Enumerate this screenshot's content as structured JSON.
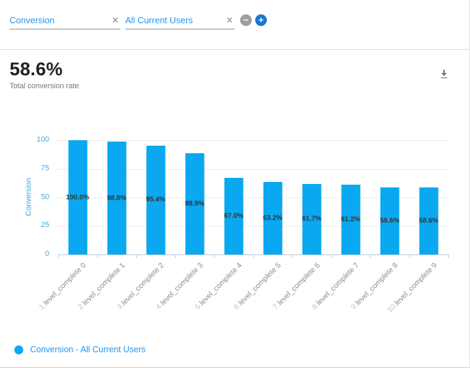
{
  "header": {
    "filters": [
      {
        "value": "Conversion"
      },
      {
        "value": "All Current Users"
      }
    ]
  },
  "icons": {
    "clear": "✕",
    "remove": "−",
    "add": "+",
    "download": "arrow-down-to-bar"
  },
  "summary": {
    "value": "58.6%",
    "caption": "Total conversion rate"
  },
  "chart_data": {
    "type": "bar",
    "title": "",
    "xlabel": "",
    "ylabel": "Conversion",
    "ylim": [
      0,
      100
    ],
    "yticks": [
      0,
      25,
      50,
      75,
      100
    ],
    "grid": true,
    "categories": [
      {
        "prefix": "1.",
        "label": "level_complete 0"
      },
      {
        "prefix": "2.",
        "label": "level_complete 1"
      },
      {
        "prefix": "3.",
        "label": "level_complete 2"
      },
      {
        "prefix": "4.",
        "label": "level_complete 3"
      },
      {
        "prefix": "5.",
        "label": "level_complete 4"
      },
      {
        "prefix": "6.",
        "label": "level_complete 5"
      },
      {
        "prefix": "7.",
        "label": "level_complete 6"
      },
      {
        "prefix": "8.",
        "label": "level_complete 7"
      },
      {
        "prefix": "9.",
        "label": "level_complete 8"
      },
      {
        "prefix": "10.",
        "label": "level_complete 9"
      }
    ],
    "values": [
      100.0,
      98.8,
      95.4,
      88.9,
      67.0,
      63.2,
      61.7,
      61.2,
      58.6,
      58.6
    ],
    "bar_labels": [
      "100.0%",
      "98.8%",
      "95.4%",
      "88.9%",
      "67.0%",
      "63.2%",
      "61.7%",
      "61.2%",
      "58.6%",
      "58.6%"
    ],
    "legend": [
      {
        "label": "Conversion - All Current Users",
        "color": "#0aa8f0"
      }
    ],
    "legend_position": "bottom-left"
  },
  "colors": {
    "bar": "#0aa8f0",
    "accent_text": "#2196f3",
    "axis_text": "#3aa7e8",
    "axis_line": "#b5cbdc",
    "gridline": "#ececec",
    "bar_label": "#333333",
    "category_prefix": "#c4c4c4",
    "category_label": "#8e8e8e",
    "plus_button": "#1976d2",
    "minus_button": "#9e9e9e"
  }
}
